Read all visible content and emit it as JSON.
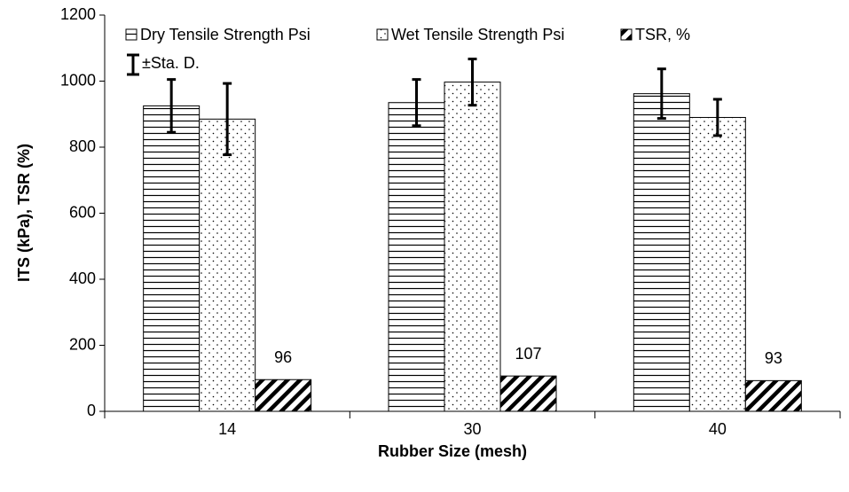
{
  "chart_data": {
    "type": "bar",
    "x_label": "Rubber Size (mesh)",
    "y_label": "ITS (kPa), TSR (%)",
    "categories": [
      "14",
      "30",
      "40"
    ],
    "series": [
      {
        "name": "Dry Tensile Strength Psi",
        "pattern": "horizontal-lines",
        "color": "#000000",
        "values": [
          925,
          935,
          962
        ],
        "errors": [
          80,
          70,
          75
        ]
      },
      {
        "name": "Wet Tensile Strength Psi",
        "pattern": "dots",
        "color": "#000000",
        "values": [
          885,
          997,
          890
        ],
        "errors": [
          108,
          70,
          55
        ]
      },
      {
        "name": "TSR, %",
        "pattern": "diagonal-stripes",
        "color": "#000000",
        "values": [
          96,
          107,
          93
        ],
        "show_values": true
      }
    ],
    "error_legend": "±Sta. D.",
    "ylim": [
      0,
      1200
    ],
    "yticks": [
      0,
      200,
      400,
      600,
      800,
      1000,
      1200
    ],
    "legend": "top",
    "grid": false
  }
}
